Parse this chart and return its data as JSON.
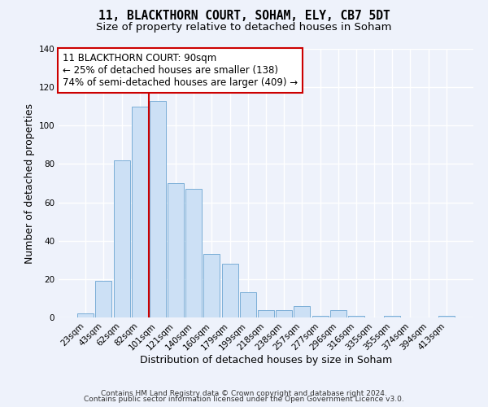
{
  "title": "11, BLACKTHORN COURT, SOHAM, ELY, CB7 5DT",
  "subtitle": "Size of property relative to detached houses in Soham",
  "xlabel": "Distribution of detached houses by size in Soham",
  "ylabel": "Number of detached properties",
  "bar_labels": [
    "23sqm",
    "43sqm",
    "62sqm",
    "82sqm",
    "101sqm",
    "121sqm",
    "140sqm",
    "160sqm",
    "179sqm",
    "199sqm",
    "218sqm",
    "238sqm",
    "257sqm",
    "277sqm",
    "296sqm",
    "316sqm",
    "335sqm",
    "355sqm",
    "374sqm",
    "394sqm",
    "413sqm"
  ],
  "bar_heights": [
    2,
    19,
    82,
    110,
    113,
    70,
    67,
    33,
    28,
    13,
    4,
    4,
    6,
    1,
    4,
    1,
    0,
    1,
    0,
    0,
    1
  ],
  "bar_color": "#cce0f5",
  "bar_edge_color": "#7aaed6",
  "bar_edge_width": 0.7,
  "ylim": [
    0,
    140
  ],
  "yticks": [
    0,
    20,
    40,
    60,
    80,
    100,
    120,
    140
  ],
  "red_line_x": 3.5,
  "red_line_color": "#cc0000",
  "annotation_text": "11 BLACKTHORN COURT: 90sqm\n← 25% of detached houses are smaller (138)\n74% of semi-detached houses are larger (409) →",
  "annotation_box_color": "#ffffff",
  "annotation_box_edge_color": "#cc0000",
  "footer_line1": "Contains HM Land Registry data © Crown copyright and database right 2024.",
  "footer_line2": "Contains public sector information licensed under the Open Government Licence v3.0.",
  "background_color": "#eef2fb",
  "plot_background_color": "#eef2fb",
  "grid_color": "#ffffff",
  "title_fontsize": 10.5,
  "subtitle_fontsize": 9.5,
  "axis_label_fontsize": 9,
  "tick_fontsize": 7.5,
  "footer_fontsize": 6.5,
  "annotation_fontsize": 8.5
}
